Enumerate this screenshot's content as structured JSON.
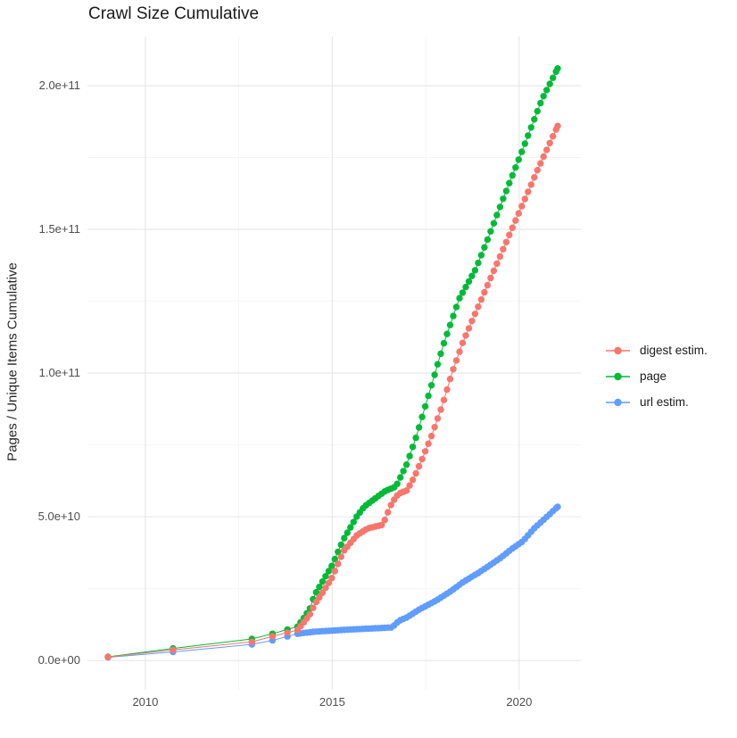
{
  "page": {
    "title": "Crawl Size Cumulative"
  },
  "chart_data": {
    "type": "line",
    "title": "Crawl Size Cumulative",
    "xlabel": "",
    "ylabel": "Pages / Unique Items Cumulative",
    "grid": {
      "major_color": "#e6e6e6",
      "minor_color": "#f3f3f3",
      "background": "#ffffff"
    },
    "x_range": [
      2008.45,
      2021.65
    ],
    "y_range": [
      -10200000000.0,
      217100000000.0
    ],
    "x_ticks": [
      {
        "label": "2010",
        "value": 2010
      },
      {
        "label": "2015",
        "value": 2015
      },
      {
        "label": "2020",
        "value": 2020
      }
    ],
    "y_ticks": [
      {
        "label": "0.0e+00",
        "value": 0
      },
      {
        "label": "5.0e+10",
        "value": 50000000000.0
      },
      {
        "label": "1.0e+11",
        "value": 100000000000.0
      },
      {
        "label": "1.5e+11",
        "value": 150000000000.0
      },
      {
        "label": "2.0e+11",
        "value": 200000000000.0
      }
    ],
    "x_minor": [
      2012.5,
      2017.5
    ],
    "y_minor": [
      25000000000.0,
      75000000000.0,
      125000000000.0,
      175000000000.0
    ],
    "legend_position": "right",
    "sample": {
      "sparse_years": [
        2009.0,
        2010.74,
        2012.85,
        2013.4,
        2013.8
      ],
      "monthly_from": 2014.07,
      "points_per_year": 12
    },
    "series": [
      {
        "name": "digest estim.",
        "color": "#F8766D",
        "z": 3,
        "anchors": [
          [
            2009.0,
            1200000000.0
          ],
          [
            2010.74,
            3700000000.0
          ],
          [
            2012.85,
            6500000000.0
          ],
          [
            2013.4,
            8400000000.0
          ],
          [
            2014.07,
            10600000000.0
          ],
          [
            2014.25,
            13500000000.0
          ],
          [
            2014.4,
            16000000000.0
          ],
          [
            2014.55,
            20000000000.0
          ],
          [
            2014.76,
            24000000000.0
          ],
          [
            2015.0,
            29000000000.0
          ],
          [
            2015.3,
            38000000000.0
          ],
          [
            2015.65,
            43500000000.0
          ],
          [
            2015.95,
            46000000000.0
          ],
          [
            2016.35,
            47200000000.0
          ],
          [
            2016.5,
            52000000000.0
          ],
          [
            2016.6,
            55000000000.0
          ],
          [
            2016.77,
            58000000000.0
          ],
          [
            2017.0,
            59200000000.0
          ],
          [
            2017.2,
            64000000000.0
          ],
          [
            2017.4,
            70000000000.0
          ],
          [
            2017.65,
            78000000000.0
          ],
          [
            2017.95,
            89000000000.0
          ],
          [
            2018.2,
            100000000000.0
          ],
          [
            2018.5,
            111000000000.0
          ],
          [
            2019.0,
            126000000000.0
          ],
          [
            2019.5,
            141000000000.0
          ],
          [
            2020.0,
            156000000000.0
          ],
          [
            2020.5,
            171000000000.0
          ],
          [
            2021.03,
            186000000000.0
          ]
        ]
      },
      {
        "name": "page",
        "color": "#00BA38",
        "z": 1,
        "anchors": [
          [
            2009.0,
            1300000000.0
          ],
          [
            2010.74,
            4200000000.0
          ],
          [
            2012.85,
            7500000000.0
          ],
          [
            2013.4,
            9300000000.0
          ],
          [
            2014.07,
            11800000000.0
          ],
          [
            2014.25,
            15000000000.0
          ],
          [
            2014.4,
            18000000000.0
          ],
          [
            2014.52,
            22600000000.0
          ],
          [
            2014.76,
            28000000000.0
          ],
          [
            2015.0,
            33200000000.0
          ],
          [
            2015.29,
            41900000000.0
          ],
          [
            2015.65,
            50000000000.0
          ],
          [
            2015.85,
            53500000000.0
          ],
          [
            2016.42,
            59000000000.0
          ],
          [
            2016.7,
            60500000000.0
          ],
          [
            2017.0,
            68500000000.0
          ],
          [
            2017.25,
            78000000000.0
          ],
          [
            2017.5,
            89000000000.0
          ],
          [
            2017.75,
            100000000000.0
          ],
          [
            2018.0,
            111000000000.0
          ],
          [
            2018.4,
            126000000000.0
          ],
          [
            2018.83,
            136000000000.0
          ],
          [
            2019.14,
            146000000000.0
          ],
          [
            2019.55,
            160000000000.0
          ],
          [
            2020.07,
            177000000000.0
          ],
          [
            2020.6,
            195000000000.0
          ],
          [
            2021.03,
            206000000000.0
          ]
        ]
      },
      {
        "name": "url estim.",
        "color": "#619CFF",
        "z": 2,
        "anchors": [
          [
            2009.0,
            1100000000.0
          ],
          [
            2010.74,
            3000000000.0
          ],
          [
            2012.85,
            5600000000.0
          ],
          [
            2013.4,
            7000000000.0
          ],
          [
            2014.07,
            9300000000.0
          ],
          [
            2014.5,
            10000000000.0
          ],
          [
            2015.5,
            10800000000.0
          ],
          [
            2016.6,
            11500000000.0
          ],
          [
            2016.78,
            13800000000.0
          ],
          [
            2017.0,
            15000000000.0
          ],
          [
            2017.32,
            17700000000.0
          ],
          [
            2017.8,
            21000000000.0
          ],
          [
            2018.16,
            24000000000.0
          ],
          [
            2018.5,
            27300000000.0
          ],
          [
            2018.9,
            30400000000.0
          ],
          [
            2019.2,
            33000000000.0
          ],
          [
            2019.5,
            35700000000.0
          ],
          [
            2019.8,
            38800000000.0
          ],
          [
            2020.1,
            41500000000.0
          ],
          [
            2020.4,
            46000000000.0
          ],
          [
            2020.7,
            49500000000.0
          ],
          [
            2021.03,
            53500000000.0
          ]
        ]
      }
    ]
  }
}
